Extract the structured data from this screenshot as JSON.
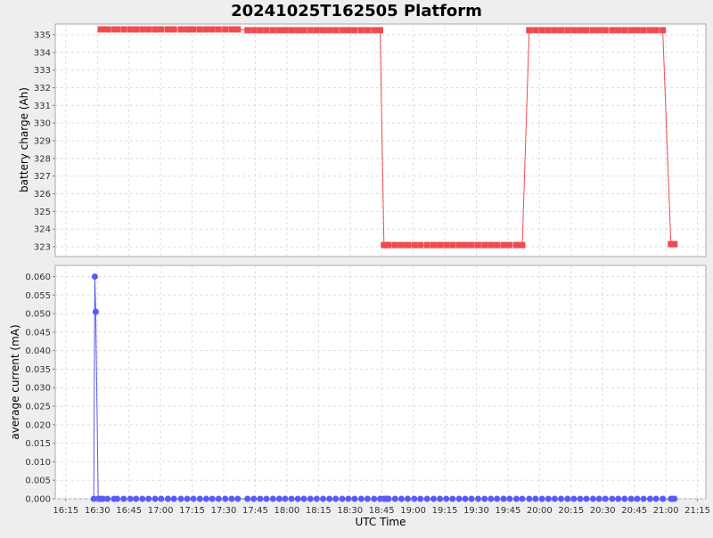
{
  "chart_data": {
    "type": "line",
    "title": "20241025T162505 Platform",
    "xlabel": "UTC Time",
    "x_ticks": [
      "16:15",
      "16:30",
      "16:45",
      "17:00",
      "17:15",
      "17:30",
      "17:45",
      "18:00",
      "18:15",
      "18:30",
      "18:45",
      "19:00",
      "19:15",
      "19:30",
      "19:45",
      "20:00",
      "20:15",
      "20:30",
      "20:45",
      "21:00",
      "21:15"
    ],
    "x_tick_minutes": [
      975,
      990,
      1005,
      1020,
      1035,
      1050,
      1065,
      1080,
      1095,
      1110,
      1125,
      1140,
      1155,
      1170,
      1185,
      1200,
      1215,
      1230,
      1245,
      1260,
      1275
    ],
    "xlim_minutes": [
      970,
      1279
    ],
    "grid": true,
    "panels": [
      {
        "ylabel": "battery charge (Ah)",
        "ylim": [
          322.45,
          335.6
        ],
        "y_ticks": [
          323,
          324,
          325,
          326,
          327,
          328,
          329,
          330,
          331,
          332,
          333,
          334,
          335
        ],
        "color": "#f04a50",
        "marker": "square",
        "series": [
          {
            "x": [
              991.6,
              992.6,
              994.8,
              997.9,
              999.4,
              1002.5,
              1005.6,
              1008.4,
              1011.4,
              1014.3,
              1017.4,
              1020.3,
              1023.5,
              1026.4,
              1029.7,
              1032.7,
              1035.6,
              1038.7,
              1041.7,
              1044.6,
              1047.6,
              1050.7,
              1053.8,
              1056.7,
              1061.3,
              1064.3,
              1067.3,
              1070.3,
              1073.4,
              1076.4,
              1079.2,
              1082.2,
              1085.2,
              1088.1,
              1091.2,
              1094.2,
              1097.2,
              1100.2,
              1103.2,
              1106.3,
              1109.2,
              1112.2,
              1115.3,
              1118.3,
              1121.4,
              1124.3,
              1126.1,
              1126.9,
              1127.6,
              1128.3,
              1131.4,
              1134.4,
              1137.4,
              1140.5,
              1143.4,
              1146.6,
              1149.7,
              1152.7,
              1155.7,
              1158.7,
              1161.8,
              1164.7,
              1167.7,
              1170.8,
              1173.9,
              1176.9,
              1179.8,
              1182.9,
              1185.8,
              1189.0,
              1191.8,
              1195.1,
              1198.1,
              1201.2,
              1204.2,
              1207.2,
              1210.2,
              1213.3,
              1216.3,
              1219.3,
              1222.3,
              1225.4,
              1228.3,
              1231.3,
              1234.5,
              1237.4,
              1240.4,
              1243.5,
              1246.4,
              1249.4,
              1252.5,
              1255.4,
              1258.5,
              1262.4,
              1263.4,
              1264.1
            ],
            "y": [
              335.3,
              335.3,
              335.3,
              335.3,
              335.3,
              335.3,
              335.3,
              335.3,
              335.3,
              335.3,
              335.3,
              335.3,
              335.3,
              335.3,
              335.3,
              335.3,
              335.3,
              335.3,
              335.3,
              335.3,
              335.3,
              335.3,
              335.3,
              335.3,
              335.25,
              335.25,
              335.25,
              335.25,
              335.25,
              335.25,
              335.25,
              335.25,
              335.25,
              335.25,
              335.25,
              335.25,
              335.25,
              335.25,
              335.25,
              335.25,
              335.25,
              335.25,
              335.25,
              335.25,
              335.25,
              335.25,
              323.1,
              323.1,
              323.1,
              323.1,
              323.1,
              323.1,
              323.1,
              323.1,
              323.1,
              323.1,
              323.1,
              323.1,
              323.1,
              323.1,
              323.1,
              323.1,
              323.1,
              323.1,
              323.1,
              323.1,
              323.1,
              323.1,
              323.1,
              323.1,
              323.1,
              335.25,
              335.25,
              335.25,
              335.25,
              335.25,
              335.25,
              335.25,
              335.25,
              335.25,
              335.25,
              335.25,
              335.25,
              335.25,
              335.25,
              335.25,
              335.25,
              335.25,
              335.25,
              335.25,
              335.25,
              335.25,
              335.25,
              323.15,
              323.15,
              323.15
            ]
          }
        ]
      },
      {
        "ylabel": "average current (mA)",
        "ylim": [
          0,
          0.063
        ],
        "y_ticks": [
          "0.000",
          "0.005",
          "0.010",
          "0.015",
          "0.020",
          "0.025",
          "0.030",
          "0.035",
          "0.040",
          "0.045",
          "0.050",
          "0.055",
          "0.060"
        ],
        "color": "#5a5af5",
        "marker": "circle",
        "series": [
          {
            "x": [
              988.3,
              988.8,
              989.2,
              990.4,
              991.6,
              992.6,
              994.8,
              997.9,
              999.4,
              1002.5,
              1005.6,
              1008.4,
              1011.4,
              1014.3,
              1017.4,
              1020.3,
              1023.5,
              1026.4,
              1029.7,
              1032.7,
              1035.6,
              1038.7,
              1041.7,
              1044.6,
              1047.6,
              1050.7,
              1053.8,
              1056.7,
              1061.3,
              1064.3,
              1067.3,
              1070.3,
              1073.4,
              1076.4,
              1079.2,
              1082.2,
              1085.2,
              1088.1,
              1091.2,
              1094.2,
              1097.2,
              1100.2,
              1103.2,
              1106.3,
              1109.2,
              1112.2,
              1115.3,
              1118.3,
              1121.4,
              1124.3,
              1126.1,
              1126.9,
              1127.6,
              1128.3,
              1131.4,
              1134.4,
              1137.4,
              1140.5,
              1143.4,
              1146.6,
              1149.7,
              1152.7,
              1155.7,
              1158.7,
              1161.8,
              1164.7,
              1167.7,
              1170.8,
              1173.9,
              1176.9,
              1179.8,
              1182.9,
              1185.8,
              1189.0,
              1191.8,
              1195.1,
              1198.1,
              1201.2,
              1204.2,
              1207.2,
              1210.2,
              1213.3,
              1216.3,
              1219.3,
              1222.3,
              1225.4,
              1228.3,
              1231.3,
              1234.5,
              1237.4,
              1240.4,
              1243.5,
              1246.4,
              1249.4,
              1252.5,
              1255.4,
              1258.5,
              1262.4,
              1263.4,
              1264.1
            ],
            "y": [
              0.0,
              0.06,
              0.0505,
              0.0,
              0.0,
              0.0,
              0.0,
              0.0,
              0.0,
              0.0,
              0.0,
              0.0,
              0.0,
              0.0,
              0.0,
              0.0,
              0.0,
              0.0,
              0.0,
              0.0,
              0.0,
              0.0,
              0.0,
              0.0,
              0.0,
              0.0,
              0.0,
              0.0,
              0.0,
              0.0,
              0.0,
              0.0,
              0.0,
              0.0,
              0.0,
              0.0,
              0.0,
              0.0,
              0.0,
              0.0,
              0.0,
              0.0,
              0.0,
              0.0,
              0.0,
              0.0,
              0.0,
              0.0,
              0.0,
              0.0,
              0.0,
              0.0,
              0.0,
              0.0,
              0.0,
              0.0,
              0.0,
              0.0,
              0.0,
              0.0,
              0.0,
              0.0,
              0.0,
              0.0,
              0.0,
              0.0,
              0.0,
              0.0,
              0.0,
              0.0,
              0.0,
              0.0,
              0.0,
              0.0,
              0.0,
              0.0,
              0.0,
              0.0,
              0.0,
              0.0,
              0.0,
              0.0,
              0.0,
              0.0,
              0.0,
              0.0,
              0.0,
              0.0,
              0.0,
              0.0,
              0.0,
              0.0,
              0.0,
              0.0,
              0.0,
              0.0,
              0.0,
              0.0,
              0.0,
              0.0
            ]
          }
        ]
      }
    ]
  }
}
